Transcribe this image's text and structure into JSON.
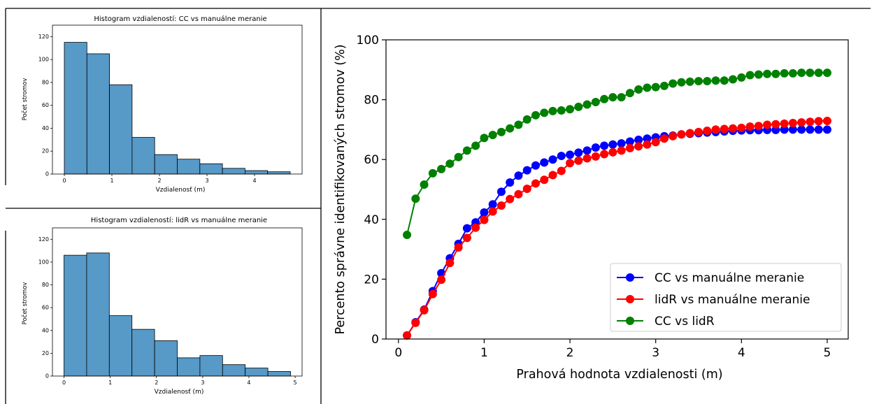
{
  "colors": {
    "hist_fill": "#5799c7",
    "hist_edge": "#000000",
    "series_cc_manual": "#0000ff",
    "series_lidr_manual": "#ff0000",
    "series_cc_lidr": "#008000"
  },
  "chart_data": [
    {
      "type": "bar",
      "subtype": "histogram",
      "title": "Histogram vzdialeností: CC vs manuálne meranie",
      "xlabel": "Vzdialenosť (m)",
      "ylabel": "Počet stromov",
      "bin_edges": [
        0,
        0.475,
        0.95,
        1.425,
        1.9,
        2.375,
        2.85,
        3.325,
        3.8,
        4.275,
        4.75
      ],
      "values": [
        115,
        105,
        78,
        32,
        17,
        13,
        9,
        5,
        3,
        2
      ],
      "xlim": [
        -0.25,
        5.0
      ],
      "ylim": [
        0,
        130
      ],
      "xticks": [
        0,
        1,
        2,
        3,
        4
      ],
      "yticks": [
        0,
        20,
        40,
        60,
        80,
        100,
        120
      ],
      "grid": false
    },
    {
      "type": "bar",
      "subtype": "histogram",
      "title": "Histogram vzdialeností: lidR vs manuálne meranie",
      "xlabel": "Vzdialenosť (m)",
      "ylabel": "Počet stromov",
      "bin_edges": [
        0,
        0.49,
        0.98,
        1.47,
        1.96,
        2.45,
        2.94,
        3.43,
        3.92,
        4.41,
        4.9
      ],
      "values": [
        106,
        108,
        53,
        41,
        31,
        16,
        18,
        10,
        7,
        4
      ],
      "xlim": [
        -0.25,
        5.15
      ],
      "ylim": [
        0,
        130
      ],
      "xticks": [
        0,
        1,
        2,
        3,
        4,
        5
      ],
      "yticks": [
        0,
        20,
        40,
        60,
        80,
        100,
        120
      ],
      "grid": false
    },
    {
      "type": "line",
      "title": "",
      "xlabel": "Prahová hodnota vzdialenosti (m)",
      "ylabel": "Percento správne identifikovaných stromov (%)",
      "xlim": [
        -0.145,
        5.245
      ],
      "ylim": [
        0,
        100
      ],
      "xticks": [
        0,
        1,
        2,
        3,
        4,
        5
      ],
      "yticks": [
        0,
        20,
        40,
        60,
        80,
        100
      ],
      "legend": "lower-right",
      "grid": false,
      "x": [
        0.1,
        0.2,
        0.3,
        0.4,
        0.5,
        0.6,
        0.7,
        0.8,
        0.9,
        1.0,
        1.1,
        1.2,
        1.3,
        1.4,
        1.5,
        1.6,
        1.7,
        1.8,
        1.9,
        2.0,
        2.1,
        2.2,
        2.3,
        2.4,
        2.5,
        2.6,
        2.7,
        2.8,
        2.9,
        3.0,
        3.1,
        3.2,
        3.3,
        3.4,
        3.5,
        3.6,
        3.7,
        3.8,
        3.9,
        4.0,
        4.1,
        4.2,
        4.3,
        4.4,
        4.5,
        4.6,
        4.7,
        4.8,
        4.9,
        5.0
      ],
      "series": [
        {
          "name": "CC vs manuálne meranie",
          "color": "#0000ff",
          "values": [
            1.2,
            5.6,
            9.8,
            16.0,
            22.0,
            27.0,
            31.8,
            37.0,
            39.0,
            42.3,
            45.0,
            49.2,
            52.3,
            54.6,
            56.4,
            58.0,
            59.0,
            60.0,
            61.2,
            61.6,
            62.3,
            63.0,
            64.0,
            64.6,
            65.0,
            65.4,
            66.0,
            66.6,
            67.0,
            67.4,
            67.8,
            68.0,
            68.4,
            68.6,
            68.8,
            69.0,
            69.2,
            69.4,
            69.6,
            69.7,
            69.8,
            69.8,
            69.9,
            69.9,
            70.0,
            70.0,
            70.0,
            70.0,
            70.0,
            70.0
          ]
        },
        {
          "name": "lidR vs manuálne meranie",
          "color": "#ff0000",
          "values": [
            1.2,
            5.4,
            9.6,
            15.0,
            19.8,
            25.4,
            30.6,
            33.8,
            37.2,
            39.8,
            42.6,
            44.6,
            46.8,
            48.4,
            50.2,
            52.0,
            53.2,
            54.8,
            56.2,
            58.8,
            59.6,
            60.4,
            61.0,
            61.8,
            62.4,
            63.0,
            63.8,
            64.4,
            65.0,
            65.8,
            67.0,
            67.8,
            68.4,
            68.8,
            69.2,
            69.6,
            70.0,
            70.2,
            70.4,
            70.6,
            71.0,
            71.2,
            71.6,
            71.8,
            72.0,
            72.2,
            72.4,
            72.6,
            72.8,
            72.9
          ]
        },
        {
          "name": "CC vs lidR",
          "color": "#008000",
          "values": [
            34.8,
            46.9,
            51.6,
            55.4,
            56.8,
            58.6,
            60.8,
            63.0,
            64.6,
            67.2,
            68.2,
            69.2,
            70.4,
            71.6,
            73.4,
            74.8,
            75.6,
            76.2,
            76.4,
            76.8,
            77.6,
            78.4,
            79.2,
            80.2,
            80.8,
            80.8,
            82.2,
            83.4,
            84.0,
            84.2,
            84.6,
            85.4,
            85.8,
            86.0,
            86.2,
            86.2,
            86.4,
            86.4,
            86.8,
            87.4,
            88.2,
            88.4,
            88.6,
            88.6,
            88.8,
            88.8,
            89.0,
            89.0,
            89.0,
            89.0
          ]
        }
      ]
    }
  ]
}
